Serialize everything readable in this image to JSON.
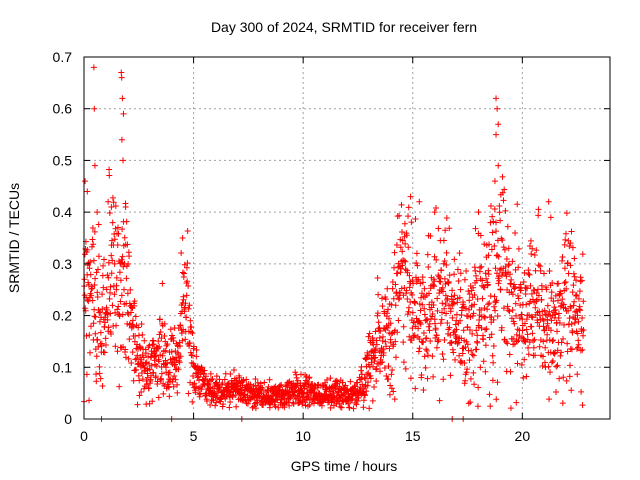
{
  "chart_data": {
    "type": "scatter",
    "title": "Day 300 of 2024, SRMTID for receiver fern",
    "xlabel": "GPS time / hours",
    "ylabel": "SRMTID / TECUs",
    "xlim": [
      0,
      24
    ],
    "ylim": [
      0,
      0.7
    ],
    "x_ticks": [
      0,
      5,
      10,
      15,
      20
    ],
    "x_tick_labels": [
      "0",
      "5",
      "10",
      "15",
      "20"
    ],
    "y_ticks": [
      0,
      0.1,
      0.2,
      0.3,
      0.4,
      0.5,
      0.6,
      0.7
    ],
    "y_tick_labels": [
      "0",
      "0.1",
      "0.2",
      "0.3",
      "0.4",
      "0.5",
      "0.6",
      "0.7"
    ],
    "grid": true,
    "marker": "+",
    "series_color": "#ff0000",
    "series": [
      {
        "name": "SRMTID",
        "profile_x": [
          0.0,
          0.3,
          0.5,
          0.8,
          1.0,
          1.3,
          1.6,
          1.8,
          2.0,
          2.3,
          2.6,
          3.0,
          3.3,
          3.6,
          4.0,
          4.3,
          4.6,
          4.8,
          5.0,
          5.3,
          5.6,
          6.0,
          6.5,
          7.0,
          7.5,
          8.0,
          8.5,
          9.0,
          9.5,
          10.0,
          10.5,
          11.0,
          11.5,
          12.0,
          12.5,
          12.8,
          13.0,
          13.3,
          13.6,
          14.0,
          14.3,
          14.6,
          15.0,
          15.5,
          16.0,
          16.5,
          17.0,
          17.5,
          18.0,
          18.5,
          18.8,
          19.0,
          19.3,
          19.6,
          20.0,
          20.5,
          21.0,
          21.5,
          22.0,
          22.5,
          22.8
        ],
        "profile_y": [
          0.22,
          0.25,
          0.24,
          0.2,
          0.22,
          0.28,
          0.24,
          0.3,
          0.23,
          0.14,
          0.1,
          0.09,
          0.12,
          0.13,
          0.1,
          0.12,
          0.22,
          0.18,
          0.1,
          0.07,
          0.06,
          0.05,
          0.055,
          0.06,
          0.05,
          0.045,
          0.045,
          0.05,
          0.05,
          0.055,
          0.05,
          0.05,
          0.05,
          0.045,
          0.05,
          0.06,
          0.1,
          0.13,
          0.15,
          0.18,
          0.24,
          0.26,
          0.22,
          0.2,
          0.25,
          0.22,
          0.18,
          0.17,
          0.22,
          0.25,
          0.3,
          0.28,
          0.26,
          0.22,
          0.2,
          0.22,
          0.2,
          0.18,
          0.22,
          0.22,
          0.2
        ],
        "peaks": [
          {
            "x": 0.05,
            "y": 0.46
          },
          {
            "x": 0.15,
            "y": 0.44
          },
          {
            "x": 0.45,
            "y": 0.68
          },
          {
            "x": 0.47,
            "y": 0.6
          },
          {
            "x": 0.5,
            "y": 0.49
          },
          {
            "x": 0.6,
            "y": 0.4
          },
          {
            "x": 1.1,
            "y": 0.42
          },
          {
            "x": 1.25,
            "y": 0.41
          },
          {
            "x": 1.7,
            "y": 0.67
          },
          {
            "x": 1.72,
            "y": 0.66
          },
          {
            "x": 1.75,
            "y": 0.62
          },
          {
            "x": 1.8,
            "y": 0.59
          },
          {
            "x": 1.73,
            "y": 0.54
          },
          {
            "x": 1.78,
            "y": 0.5
          },
          {
            "x": 1.9,
            "y": 0.41
          },
          {
            "x": 4.5,
            "y": 0.35
          },
          {
            "x": 14.9,
            "y": 0.43
          },
          {
            "x": 15.3,
            "y": 0.42
          },
          {
            "x": 16.0,
            "y": 0.4
          },
          {
            "x": 18.0,
            "y": 0.4
          },
          {
            "x": 18.8,
            "y": 0.62
          },
          {
            "x": 18.85,
            "y": 0.6
          },
          {
            "x": 18.9,
            "y": 0.57
          },
          {
            "x": 18.8,
            "y": 0.55
          },
          {
            "x": 18.9,
            "y": 0.49
          },
          {
            "x": 18.75,
            "y": 0.46
          },
          {
            "x": 18.8,
            "y": 0.38
          },
          {
            "x": 21.2,
            "y": 0.42
          },
          {
            "x": 21.3,
            "y": 0.39
          },
          {
            "x": 22.2,
            "y": 0.34
          }
        ],
        "zero_points": [
          {
            "x": 0.8,
            "y": 0
          },
          {
            "x": 4.0,
            "y": 0
          },
          {
            "x": 7.2,
            "y": 0
          },
          {
            "x": 16.8,
            "y": 0
          },
          {
            "x": 17.3,
            "y": 0
          }
        ]
      }
    ]
  }
}
